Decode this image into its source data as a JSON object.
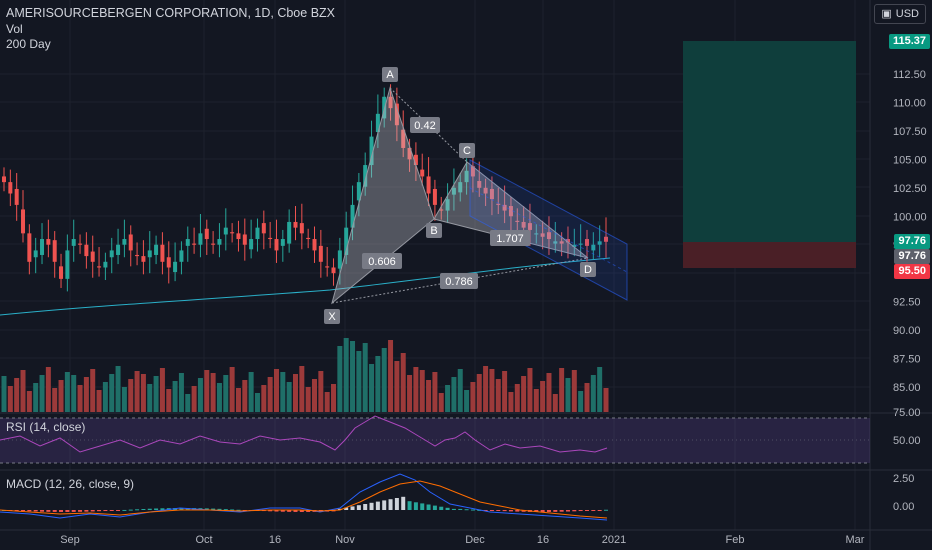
{
  "header": {
    "symbol_line": "AMERISOURCEBERGEN CORPORATION, 1D, Cboe BZX",
    "vol_label": "Vol",
    "ma_label": "200 Day",
    "currency_button": "USD"
  },
  "panes": {
    "rsi_label": "RSI (14, close)",
    "macd_label": "MACD (12, 26, close, 9)"
  },
  "price_axis": {
    "ticks": [
      "112.50",
      "110.00",
      "107.50",
      "105.00",
      "102.50",
      "100.00",
      "97.50",
      "92.50",
      "90.00",
      "87.50",
      "85.00"
    ],
    "rsi_ticks": [
      "75.00",
      "50.00"
    ],
    "macd_ticks": [
      "2.50",
      "0.00"
    ]
  },
  "price_labels": {
    "target": "115.37",
    "last": "97.76",
    "last2": "97.76",
    "stop": "95.50"
  },
  "time_axis": [
    "Sep",
    "Oct",
    "16",
    "Nov",
    "Dec",
    "16",
    "2021",
    "Feb",
    "Mar"
  ],
  "pattern": {
    "points": [
      "X",
      "A",
      "B",
      "C",
      "D"
    ],
    "ratios": [
      "0.42",
      "1.707",
      "0.606",
      "0.786"
    ]
  },
  "colors": {
    "up": "#26a69a",
    "down": "#ef5350",
    "background": "#131722",
    "ma": "#2ab0c9",
    "target_label": "#089981",
    "stop_label": "#f23645",
    "rsi": "#9c27b0"
  }
}
